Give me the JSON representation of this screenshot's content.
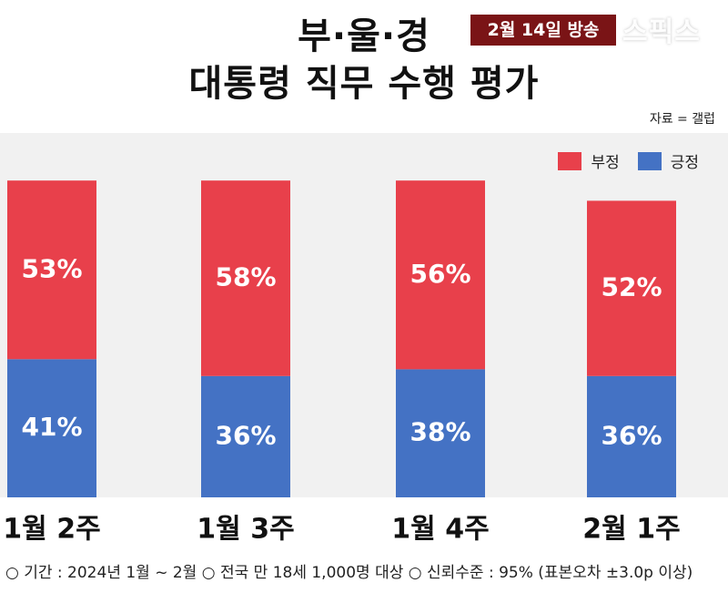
{
  "title": {
    "line1": "부·울·경",
    "line2": "대통령 직무 수행 평가"
  },
  "badge": "2월 14일 방송",
  "watermark": "스픽스",
  "source": "자료 = 갤럽",
  "footnote": "○ 기간 : 2024년 1월 ~ 2월 ○ 전국 만 18세 1,000명 대상 ○ 신뢰수준 : 95% (표본오차 ±3.0p 이상)",
  "colors": {
    "negative": "#e8404b",
    "positive": "#4472c4"
  },
  "chart_data": {
    "type": "bar",
    "stacked": true,
    "categories": [
      "1월 2주",
      "1월 3주",
      "1월 4주",
      "2월 1주"
    ],
    "series": [
      {
        "name": "긍정",
        "values": [
          41,
          36,
          38,
          36
        ],
        "labels": [
          "41%",
          "36%",
          "38%",
          "36%"
        ],
        "color": "#4472c4"
      },
      {
        "name": "부정",
        "values": [
          53,
          58,
          56,
          52
        ],
        "labels": [
          "53%",
          "58%",
          "56%",
          "52%"
        ],
        "color": "#e8404b"
      }
    ],
    "legend": {
      "items": [
        "부정",
        "긍정"
      ],
      "placement": "top-right"
    },
    "ylim": [
      0,
      100
    ],
    "grid": false
  }
}
